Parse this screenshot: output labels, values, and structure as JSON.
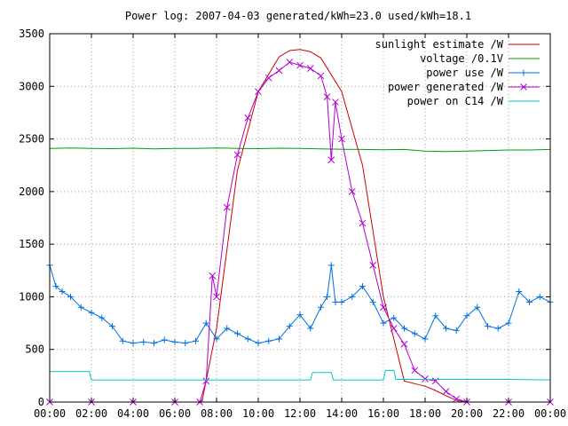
{
  "chart_data": {
    "type": "line",
    "title": "Power log: 2007-04-03 generated/kWh=23.0 used/kWh=18.1",
    "xlabel": "",
    "ylabel": "",
    "xlim": [
      0,
      24
    ],
    "ylim": [
      0,
      3500
    ],
    "grid": true,
    "legend_position": "top-right",
    "x_ticks": [
      "00:00",
      "02:00",
      "04:00",
      "06:00",
      "08:00",
      "10:00",
      "12:00",
      "14:00",
      "16:00",
      "18:00",
      "20:00",
      "22:00",
      "00:00"
    ],
    "y_ticks": [
      0,
      500,
      1000,
      1500,
      2000,
      2500,
      3000,
      3500
    ],
    "series": [
      {
        "name": "sunlight estimate /W",
        "color": "#cc0000",
        "marker": "none",
        "x": [
          0,
          7.3,
          8.0,
          9.0,
          10.0,
          11.0,
          11.5,
          12.0,
          12.5,
          13.0,
          14.0,
          15.0,
          16.0,
          17.0,
          17.5,
          18.0,
          18.5,
          19.0,
          19.5,
          20.0,
          24
        ],
        "y": [
          0,
          0,
          700,
          2200,
          2950,
          3280,
          3340,
          3350,
          3330,
          3270,
          2950,
          2250,
          1000,
          200,
          175,
          150,
          110,
          60,
          15,
          0,
          0
        ]
      },
      {
        "name": "voltage /0.1V",
        "color": "#00a000",
        "marker": "none",
        "x": [
          0,
          1,
          2,
          3,
          4,
          5,
          6,
          7,
          8,
          9,
          10,
          11,
          12,
          13,
          14,
          15,
          16,
          17,
          18,
          19,
          20,
          21,
          22,
          23,
          24
        ],
        "y": [
          2410,
          2415,
          2410,
          2408,
          2412,
          2405,
          2410,
          2410,
          2415,
          2410,
          2408,
          2412,
          2410,
          2405,
          2402,
          2400,
          2398,
          2400,
          2385,
          2380,
          2385,
          2390,
          2395,
          2395,
          2400
        ]
      },
      {
        "name": "power use /W",
        "color": "#0070e0",
        "marker": "plus",
        "x": [
          0,
          0.3,
          0.6,
          1.0,
          1.5,
          2.0,
          2.5,
          3.0,
          3.5,
          4.0,
          4.5,
          5.0,
          5.5,
          6.0,
          6.5,
          7.0,
          7.5,
          8.0,
          8.5,
          9.0,
          9.5,
          10.0,
          10.5,
          11.0,
          11.5,
          12.0,
          12.5,
          13.0,
          13.3,
          13.5,
          13.7,
          14.0,
          14.5,
          15.0,
          15.5,
          16.0,
          16.5,
          17.0,
          17.5,
          18.0,
          18.5,
          19.0,
          19.5,
          20.0,
          20.5,
          21.0,
          21.5,
          22.0,
          22.5,
          23.0,
          23.5,
          24.0
        ],
        "y": [
          1300,
          1100,
          1050,
          1000,
          900,
          850,
          800,
          720,
          580,
          560,
          570,
          560,
          590,
          570,
          560,
          580,
          750,
          600,
          700,
          650,
          600,
          560,
          580,
          600,
          720,
          830,
          700,
          900,
          1000,
          1300,
          950,
          950,
          1000,
          1100,
          950,
          750,
          800,
          700,
          650,
          600,
          820,
          700,
          680,
          820,
          900,
          720,
          700,
          750,
          1050,
          950,
          1000,
          950
        ]
      },
      {
        "name": "power generated /W",
        "color": "#b000d0",
        "marker": "x",
        "x": [
          0,
          2,
          4,
          6,
          7.2,
          7.5,
          7.8,
          8.0,
          8.5,
          9.0,
          9.5,
          10.0,
          10.5,
          11.0,
          11.5,
          12.0,
          12.5,
          13.0,
          13.3,
          13.5,
          13.7,
          14.0,
          14.5,
          15.0,
          15.5,
          16.0,
          16.5,
          17.0,
          17.5,
          18.0,
          18.5,
          19.0,
          19.5,
          20.0,
          22,
          24
        ],
        "y": [
          0,
          0,
          0,
          0,
          0,
          200,
          1200,
          1000,
          1850,
          2350,
          2700,
          2950,
          3080,
          3150,
          3230,
          3200,
          3170,
          3100,
          2900,
          2300,
          2850,
          2500,
          2000,
          1700,
          1300,
          900,
          700,
          550,
          300,
          220,
          200,
          100,
          30,
          0,
          0,
          0
        ]
      },
      {
        "name": "power on C14 /W",
        "color": "#00c8c8",
        "marker": "none",
        "x": [
          0,
          1.9,
          2.0,
          6.0,
          7.0,
          8.0,
          12.5,
          12.6,
          13.5,
          13.6,
          16.0,
          16.1,
          16.5,
          16.6,
          18.0,
          20.0,
          22.0,
          24.0
        ],
        "y": [
          290,
          290,
          210,
          210,
          210,
          210,
          210,
          280,
          280,
          210,
          210,
          300,
          300,
          215,
          215,
          215,
          215,
          210
        ]
      }
    ]
  }
}
